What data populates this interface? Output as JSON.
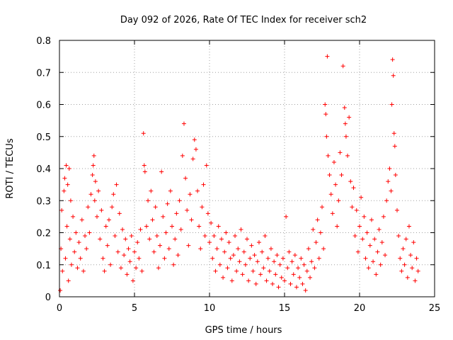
{
  "chart_data": {
    "type": "scatter",
    "title": "Day 092 of 2026, Rate Of TEC Index for receiver sch2",
    "xlabel": "GPS time / hours",
    "ylabel": "ROTI / TECUs",
    "xlim": [
      0,
      25
    ],
    "ylim": [
      0,
      0.8
    ],
    "x_ticks": [
      0,
      5,
      10,
      15,
      20,
      25
    ],
    "y_ticks": [
      0,
      0.1,
      0.2,
      0.3,
      0.4,
      0.5,
      0.6,
      0.7,
      0.8
    ],
    "x_tick_labels": [
      "0",
      "5",
      "10",
      "15",
      "20",
      "25"
    ],
    "y_tick_labels": [
      "0",
      "0.1",
      "0.2",
      "0.3",
      "0.4",
      "0.5",
      "0.6",
      "0.7",
      "0.8"
    ],
    "grid": true,
    "marker": "+",
    "color": "#ff0000",
    "series": [
      {
        "name": "ROTI",
        "points": [
          [
            0.05,
            0.02
          ],
          [
            0.1,
            0.15
          ],
          [
            0.15,
            0.27
          ],
          [
            0.2,
            0.08
          ],
          [
            0.3,
            0.33
          ],
          [
            0.35,
            0.37
          ],
          [
            0.4,
            0.12
          ],
          [
            0.45,
            0.41
          ],
          [
            0.5,
            0.22
          ],
          [
            0.55,
            0.35
          ],
          [
            0.6,
            0.05
          ],
          [
            0.65,
            0.4
          ],
          [
            0.7,
            0.18
          ],
          [
            0.75,
            0.3
          ],
          [
            0.8,
            0.1
          ],
          [
            0.9,
            0.25
          ],
          [
            1.0,
            0.14
          ],
          [
            1.1,
            0.2
          ],
          [
            1.2,
            0.09
          ],
          [
            1.3,
            0.17
          ],
          [
            1.4,
            0.12
          ],
          [
            1.5,
            0.24
          ],
          [
            1.6,
            0.08
          ],
          [
            1.7,
            0.19
          ],
          [
            1.8,
            0.15
          ],
          [
            1.9,
            0.28
          ],
          [
            2.0,
            0.2
          ],
          [
            2.1,
            0.32
          ],
          [
            2.2,
            0.38
          ],
          [
            2.25,
            0.41
          ],
          [
            2.3,
            0.44
          ],
          [
            2.35,
            0.3
          ],
          [
            2.4,
            0.36
          ],
          [
            2.5,
            0.25
          ],
          [
            2.6,
            0.33
          ],
          [
            2.7,
            0.18
          ],
          [
            2.8,
            0.27
          ],
          [
            2.9,
            0.12
          ],
          [
            3.0,
            0.08
          ],
          [
            3.1,
            0.22
          ],
          [
            3.2,
            0.16
          ],
          [
            3.3,
            0.24
          ],
          [
            3.4,
            0.1
          ],
          [
            3.5,
            0.28
          ],
          [
            3.6,
            0.32
          ],
          [
            3.7,
            0.19
          ],
          [
            3.8,
            0.35
          ],
          [
            3.9,
            0.14
          ],
          [
            4.0,
            0.26
          ],
          [
            4.1,
            0.09
          ],
          [
            4.2,
            0.21
          ],
          [
            4.3,
            0.13
          ],
          [
            4.4,
            0.18
          ],
          [
            4.5,
            0.07
          ],
          [
            4.6,
            0.15
          ],
          [
            4.7,
            0.11
          ],
          [
            4.8,
            0.19
          ],
          [
            4.9,
            0.05
          ],
          [
            5.0,
            0.14
          ],
          [
            5.1,
            0.09
          ],
          [
            5.2,
            0.17
          ],
          [
            5.3,
            0.12
          ],
          [
            5.4,
            0.21
          ],
          [
            5.5,
            0.08
          ],
          [
            5.6,
            0.51
          ],
          [
            5.65,
            0.41
          ],
          [
            5.7,
            0.39
          ],
          [
            5.8,
            0.22
          ],
          [
            5.9,
            0.3
          ],
          [
            6.0,
            0.18
          ],
          [
            6.1,
            0.33
          ],
          [
            6.2,
            0.24
          ],
          [
            6.3,
            0.14
          ],
          [
            6.4,
            0.28
          ],
          [
            6.5,
            0.19
          ],
          [
            6.6,
            0.09
          ],
          [
            6.7,
            0.16
          ],
          [
            6.8,
            0.39
          ],
          [
            6.9,
            0.25
          ],
          [
            7.0,
            0.12
          ],
          [
            7.1,
            0.2
          ],
          [
            7.2,
            0.29
          ],
          [
            7.3,
            0.15
          ],
          [
            7.4,
            0.33
          ],
          [
            7.5,
            0.22
          ],
          [
            7.6,
            0.1
          ],
          [
            7.7,
            0.18
          ],
          [
            7.8,
            0.26
          ],
          [
            7.9,
            0.13
          ],
          [
            8.0,
            0.3
          ],
          [
            8.1,
            0.21
          ],
          [
            8.2,
            0.44
          ],
          [
            8.3,
            0.54
          ],
          [
            8.4,
            0.37
          ],
          [
            8.5,
            0.27
          ],
          [
            8.6,
            0.16
          ],
          [
            8.7,
            0.32
          ],
          [
            8.8,
            0.24
          ],
          [
            8.9,
            0.43
          ],
          [
            9.0,
            0.49
          ],
          [
            9.1,
            0.46
          ],
          [
            9.2,
            0.33
          ],
          [
            9.3,
            0.22
          ],
          [
            9.4,
            0.15
          ],
          [
            9.5,
            0.28
          ],
          [
            9.6,
            0.35
          ],
          [
            9.7,
            0.19
          ],
          [
            9.8,
            0.41
          ],
          [
            9.9,
            0.26
          ],
          [
            10.0,
            0.17
          ],
          [
            10.1,
            0.23
          ],
          [
            10.2,
            0.12
          ],
          [
            10.3,
            0.19
          ],
          [
            10.4,
            0.08
          ],
          [
            10.5,
            0.15
          ],
          [
            10.6,
            0.22
          ],
          [
            10.7,
            0.1
          ],
          [
            10.8,
            0.18
          ],
          [
            10.9,
            0.06
          ],
          [
            11.0,
            0.14
          ],
          [
            11.1,
            0.2
          ],
          [
            11.2,
            0.09
          ],
          [
            11.3,
            0.17
          ],
          [
            11.4,
            0.12
          ],
          [
            11.5,
            0.05
          ],
          [
            11.6,
            0.13
          ],
          [
            11.7,
            0.19
          ],
          [
            11.8,
            0.08
          ],
          [
            11.9,
            0.15
          ],
          [
            12.0,
            0.11
          ],
          [
            12.1,
            0.21
          ],
          [
            12.2,
            0.07
          ],
          [
            12.3,
            0.14
          ],
          [
            12.4,
            0.1
          ],
          [
            12.5,
            0.18
          ],
          [
            12.6,
            0.05
          ],
          [
            12.7,
            0.12
          ],
          [
            12.8,
            0.16
          ],
          [
            12.9,
            0.08
          ],
          [
            13.0,
            0.13
          ],
          [
            13.1,
            0.04
          ],
          [
            13.2,
            0.11
          ],
          [
            13.3,
            0.17
          ],
          [
            13.4,
            0.07
          ],
          [
            13.5,
            0.14
          ],
          [
            13.6,
            0.09
          ],
          [
            13.7,
            0.19
          ],
          [
            13.8,
            0.05
          ],
          [
            13.9,
            0.12
          ],
          [
            14.0,
            0.08
          ],
          [
            14.1,
            0.15
          ],
          [
            14.2,
            0.04
          ],
          [
            14.3,
            0.11
          ],
          [
            14.4,
            0.07
          ],
          [
            14.5,
            0.13
          ],
          [
            14.6,
            0.03
          ],
          [
            14.7,
            0.1
          ],
          [
            14.8,
            0.06
          ],
          [
            14.9,
            0.12
          ],
          [
            15.0,
            0.05
          ],
          [
            15.1,
            0.25
          ],
          [
            15.2,
            0.09
          ],
          [
            15.3,
            0.14
          ],
          [
            15.4,
            0.04
          ],
          [
            15.5,
            0.11
          ],
          [
            15.6,
            0.07
          ],
          [
            15.7,
            0.13
          ],
          [
            15.8,
            0.03
          ],
          [
            15.9,
            0.09
          ],
          [
            16.0,
            0.06
          ],
          [
            16.1,
            0.12
          ],
          [
            16.2,
            0.04
          ],
          [
            16.3,
            0.1
          ],
          [
            16.4,
            0.02
          ],
          [
            16.5,
            0.08
          ],
          [
            16.6,
            0.15
          ],
          [
            16.7,
            0.06
          ],
          [
            16.8,
            0.11
          ],
          [
            16.9,
            0.21
          ],
          [
            17.0,
            0.09
          ],
          [
            17.1,
            0.17
          ],
          [
            17.2,
            0.24
          ],
          [
            17.3,
            0.12
          ],
          [
            17.4,
            0.2
          ],
          [
            17.5,
            0.28
          ],
          [
            17.6,
            0.15
          ],
          [
            17.7,
            0.6
          ],
          [
            17.75,
            0.57
          ],
          [
            17.8,
            0.5
          ],
          [
            17.85,
            0.75
          ],
          [
            17.9,
            0.44
          ],
          [
            18.0,
            0.38
          ],
          [
            18.1,
            0.32
          ],
          [
            18.2,
            0.26
          ],
          [
            18.3,
            0.42
          ],
          [
            18.4,
            0.35
          ],
          [
            18.5,
            0.22
          ],
          [
            18.6,
            0.3
          ],
          [
            18.7,
            0.45
          ],
          [
            18.8,
            0.38
          ],
          [
            18.9,
            0.72
          ],
          [
            19.0,
            0.59
          ],
          [
            19.05,
            0.54
          ],
          [
            19.1,
            0.5
          ],
          [
            19.2,
            0.44
          ],
          [
            19.3,
            0.56
          ],
          [
            19.4,
            0.36
          ],
          [
            19.5,
            0.28
          ],
          [
            19.6,
            0.34
          ],
          [
            19.7,
            0.19
          ],
          [
            19.8,
            0.27
          ],
          [
            19.9,
            0.14
          ],
          [
            20.0,
            0.22
          ],
          [
            20.1,
            0.31
          ],
          [
            20.2,
            0.18
          ],
          [
            20.3,
            0.25
          ],
          [
            20.4,
            0.12
          ],
          [
            20.5,
            0.2
          ],
          [
            20.6,
            0.09
          ],
          [
            20.7,
            0.16
          ],
          [
            20.8,
            0.24
          ],
          [
            20.9,
            0.11
          ],
          [
            21.0,
            0.18
          ],
          [
            21.1,
            0.07
          ],
          [
            21.2,
            0.14
          ],
          [
            21.3,
            0.21
          ],
          [
            21.4,
            0.1
          ],
          [
            21.5,
            0.17
          ],
          [
            21.6,
            0.25
          ],
          [
            21.7,
            0.13
          ],
          [
            21.8,
            0.3
          ],
          [
            21.9,
            0.36
          ],
          [
            22.0,
            0.4
          ],
          [
            22.1,
            0.33
          ],
          [
            22.15,
            0.6
          ],
          [
            22.2,
            0.74
          ],
          [
            22.25,
            0.69
          ],
          [
            22.3,
            0.51
          ],
          [
            22.35,
            0.47
          ],
          [
            22.4,
            0.38
          ],
          [
            22.5,
            0.27
          ],
          [
            22.6,
            0.19
          ],
          [
            22.7,
            0.12
          ],
          [
            22.8,
            0.08
          ],
          [
            22.9,
            0.15
          ],
          [
            23.0,
            0.1
          ],
          [
            23.1,
            0.18
          ],
          [
            23.2,
            0.06
          ],
          [
            23.3,
            0.22
          ],
          [
            23.4,
            0.13
          ],
          [
            23.5,
            0.09
          ],
          [
            23.6,
            0.17
          ],
          [
            23.7,
            0.05
          ],
          [
            23.8,
            0.12
          ],
          [
            23.9,
            0.08
          ]
        ]
      }
    ]
  }
}
